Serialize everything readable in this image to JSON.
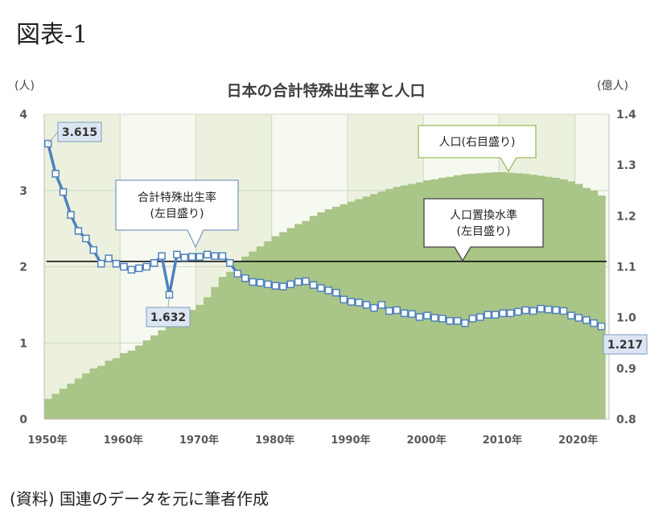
{
  "figure_label": "図表-1",
  "source_note": "(資料) 国連のデータを元に筆者作成",
  "chart_data": {
    "type": "line",
    "title": "日本の合計特殊出生率と人口",
    "left_unit": "(人)",
    "right_unit": "(億人)",
    "left_axis": {
      "min": 0,
      "max": 4,
      "ticks": [
        "0",
        "1",
        "2",
        "3",
        "4"
      ]
    },
    "right_axis": {
      "min": 0.8,
      "max": 1.4,
      "ticks": [
        "0.8",
        "0.9",
        "1.0",
        "1.1",
        "1.2",
        "1.3",
        "1.4"
      ]
    },
    "x_ticks": [
      "1950年",
      "1960年",
      "1970年",
      "1980年",
      "1990年",
      "2000年",
      "2010年",
      "2020年"
    ],
    "x_tick_years": [
      1950,
      1960,
      1970,
      1980,
      1990,
      2000,
      2010,
      2020
    ],
    "years": [
      1950,
      1951,
      1952,
      1953,
      1954,
      1955,
      1956,
      1957,
      1958,
      1959,
      1960,
      1961,
      1962,
      1963,
      1964,
      1965,
      1966,
      1967,
      1968,
      1969,
      1970,
      1971,
      1972,
      1973,
      1974,
      1975,
      1976,
      1977,
      1978,
      1979,
      1980,
      1981,
      1982,
      1983,
      1984,
      1985,
      1986,
      1987,
      1988,
      1989,
      1990,
      1991,
      1992,
      1993,
      1994,
      1995,
      1996,
      1997,
      1998,
      1999,
      2000,
      2001,
      2002,
      2003,
      2004,
      2005,
      2006,
      2007,
      2008,
      2009,
      2010,
      2011,
      2012,
      2013,
      2014,
      2015,
      2016,
      2017,
      2018,
      2019,
      2020,
      2021,
      2022,
      2023
    ],
    "series": [
      {
        "name": "合計特殊出生率",
        "label_lines": [
          "合計特殊出生率",
          "(左目盛り)"
        ],
        "axis": "left",
        "color": "#4f81bd",
        "values": [
          3.615,
          3.22,
          2.98,
          2.68,
          2.47,
          2.37,
          2.22,
          2.04,
          2.11,
          2.04,
          2.0,
          1.96,
          1.98,
          2.0,
          2.05,
          2.14,
          1.632,
          2.16,
          2.12,
          2.13,
          2.13,
          2.16,
          2.14,
          2.14,
          2.05,
          1.91,
          1.85,
          1.8,
          1.79,
          1.77,
          1.75,
          1.74,
          1.77,
          1.8,
          1.81,
          1.76,
          1.72,
          1.69,
          1.66,
          1.57,
          1.54,
          1.53,
          1.5,
          1.46,
          1.5,
          1.42,
          1.43,
          1.39,
          1.38,
          1.34,
          1.36,
          1.33,
          1.32,
          1.29,
          1.29,
          1.26,
          1.32,
          1.34,
          1.37,
          1.37,
          1.39,
          1.39,
          1.41,
          1.43,
          1.42,
          1.45,
          1.44,
          1.43,
          1.42,
          1.36,
          1.33,
          1.3,
          1.26,
          1.217
        ]
      },
      {
        "name": "人口",
        "label_lines": [
          "人口(右目盛り)"
        ],
        "axis": "right",
        "color": "#a9c587",
        "values": [
          0.84,
          0.85,
          0.86,
          0.87,
          0.88,
          0.89,
          0.9,
          0.905,
          0.915,
          0.92,
          0.93,
          0.935,
          0.945,
          0.955,
          0.965,
          0.975,
          0.985,
          0.995,
          1.005,
          1.015,
          1.025,
          1.04,
          1.06,
          1.08,
          1.09,
          1.11,
          1.12,
          1.13,
          1.14,
          1.15,
          1.16,
          1.168,
          1.176,
          1.184,
          1.19,
          1.2,
          1.207,
          1.213,
          1.218,
          1.223,
          1.228,
          1.233,
          1.238,
          1.243,
          1.248,
          1.253,
          1.257,
          1.26,
          1.263,
          1.266,
          1.27,
          1.272,
          1.275,
          1.277,
          1.28,
          1.282,
          1.283,
          1.284,
          1.285,
          1.286,
          1.286,
          1.285,
          1.284,
          1.283,
          1.281,
          1.279,
          1.277,
          1.275,
          1.272,
          1.268,
          1.263,
          1.255,
          1.25,
          1.24
        ]
      },
      {
        "name": "人口置換水準",
        "label_lines": [
          "人口置換水準",
          "(左目盛り)"
        ],
        "axis": "left",
        "color": "#000000",
        "value": 2.07
      }
    ],
    "data_labels": [
      {
        "year": 1950,
        "text": "3.615"
      },
      {
        "year": 1966,
        "text": "1.632"
      },
      {
        "year": 2023,
        "text": "1.217"
      }
    ],
    "grid": true,
    "plot_background": "#ebf1de",
    "band_color": "#ffffff"
  }
}
